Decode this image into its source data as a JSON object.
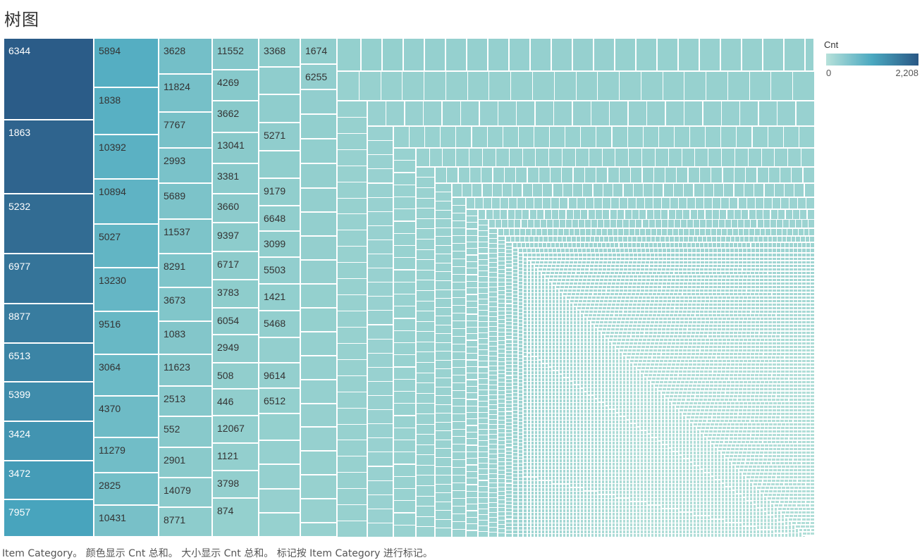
{
  "title": "树图",
  "caption": "Item Category。 颜色显示 Cnt 总和。 大小显示 Cnt 总和。 标记按 Item Category 进行标记。",
  "legend": {
    "title": "Cnt",
    "min_label": "0",
    "max_label": "2,208",
    "color_min": "#b7e1da",
    "color_mid": "#4aa8c0",
    "color_max": "#2a5885"
  },
  "chart_data": {
    "type": "treemap",
    "dimension": "Item Category",
    "size_measure": "Cnt",
    "color_measure": "Cnt",
    "color_range": [
      0,
      2208
    ],
    "labeled_categories": [
      [
        "6344",
        "1863",
        "5232",
        "6977",
        "8877",
        "6513",
        "5399",
        "3424",
        "3472",
        "7957"
      ],
      [
        "5894",
        "1838",
        "10392",
        "10894",
        "5027",
        "13230",
        "9516",
        "3064",
        "4370",
        "11279",
        "2825",
        "10431"
      ],
      [
        "3628",
        "11824",
        "7767",
        "2993",
        "5689",
        "11537",
        "8291",
        "3673",
        "1083",
        "11623",
        "2513",
        "552",
        "2901",
        "14079",
        "8771"
      ],
      [
        "11552",
        "4269",
        "3662",
        "13041",
        "3381",
        "3660",
        "9397",
        "6717",
        "3783",
        "6054",
        "2949",
        "508",
        "446",
        "12067",
        "1121",
        "3798",
        "874"
      ],
      [
        "3368",
        "5271",
        "9179",
        "6648",
        "3099",
        "5503",
        "1421",
        "5468",
        "9614",
        "6512"
      ],
      [
        "1674",
        "6255"
      ]
    ]
  }
}
